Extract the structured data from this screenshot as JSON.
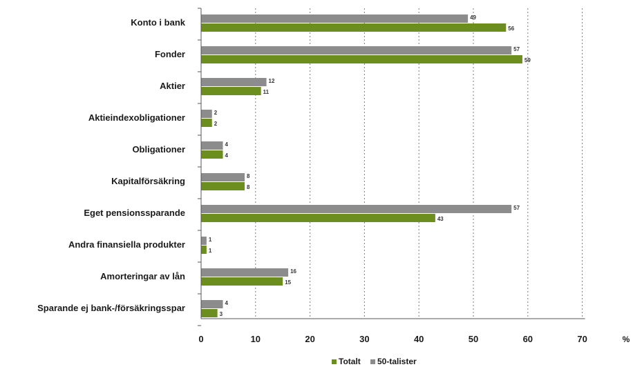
{
  "chart_data": {
    "type": "bar",
    "orientation": "horizontal",
    "categories": [
      "Konto i bank",
      "Fonder",
      "Aktier",
      "Aktieindexobligationer",
      "Obligationer",
      "Kapitalförsäkring",
      "Eget pensionssparande",
      "Andra finansiella produkter",
      "Amorteringar av lån",
      "Sparande ej bank-/försäkringsspar"
    ],
    "series": [
      {
        "name": "50-talister",
        "color": "#8c8c8c",
        "values": [
          49,
          57,
          12,
          2,
          4,
          8,
          57,
          1,
          16,
          4
        ]
      },
      {
        "name": "Totalt",
        "color": "#6b8e1f",
        "values": [
          56,
          59,
          11,
          2,
          4,
          8,
          43,
          1,
          15,
          3
        ]
      }
    ],
    "xlim": [
      0,
      70
    ],
    "xticks": [
      0,
      10,
      20,
      30,
      40,
      50,
      60,
      70
    ],
    "unit_label": "%",
    "grid": "vertical dotted",
    "legend": {
      "position": "bottom-center",
      "entries": [
        "Totalt",
        "50-talister"
      ]
    }
  }
}
